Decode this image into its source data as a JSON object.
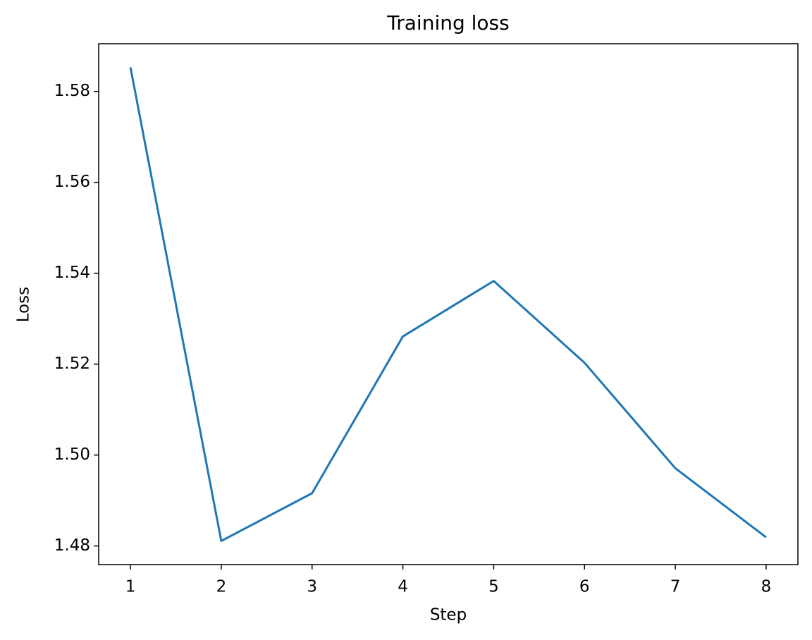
{
  "chart_data": {
    "type": "line",
    "title": "Training loss",
    "x_label": "Step",
    "y_label": "Loss",
    "x": [
      1,
      2,
      3,
      4,
      5,
      6,
      7,
      8
    ],
    "series": [
      {
        "color": "#1f77b4",
        "values": [
          1.5853,
          1.4811,
          1.4916,
          1.5261,
          1.5383,
          1.5203,
          1.4971,
          1.4819
        ]
      }
    ],
    "xlim": [
      0.65,
      8.35
    ],
    "xticks": [
      1,
      2,
      3,
      4,
      5,
      6,
      7,
      8
    ],
    "ylim": [
      1.4759,
      1.5905
    ],
    "yticks": [
      1.48,
      {
        "value": 1.5,
        "label": "1.50"
      },
      1.52,
      1.54,
      1.56,
      1.58
    ],
    "grid": false
  }
}
